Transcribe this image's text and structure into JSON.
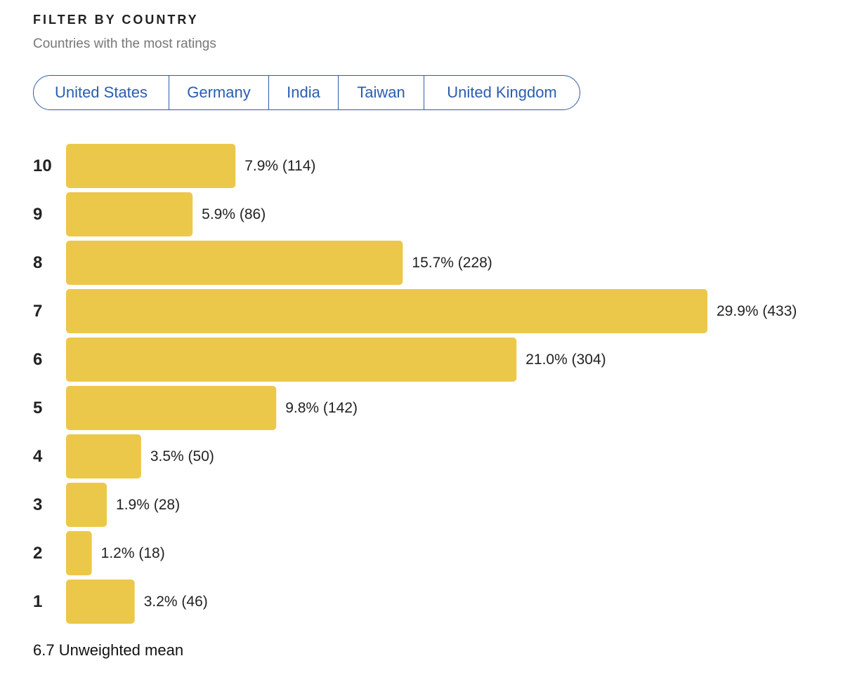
{
  "header": {
    "title": "FILTER BY COUNTRY",
    "subtitle": "Countries with the most ratings"
  },
  "filters": [
    "United States",
    "Germany",
    "India",
    "Taiwan",
    "United Kingdom"
  ],
  "chart_data": {
    "type": "bar",
    "orientation": "horizontal",
    "color": "#ecc84a",
    "categories": [
      "10",
      "9",
      "8",
      "7",
      "6",
      "5",
      "4",
      "3",
      "2",
      "1"
    ],
    "values": [
      7.9,
      5.9,
      15.7,
      29.9,
      21.0,
      9.8,
      3.5,
      1.9,
      1.2,
      3.2
    ],
    "value_labels": [
      "7.9% (114)",
      "5.9% (86)",
      "15.7% (228)",
      "29.9% (433)",
      "21.0% (304)",
      "9.8% (142)",
      "3.5% (50)",
      "1.9% (28)",
      "1.2% (18)",
      "3.2% (46)"
    ]
  },
  "footer": {
    "mean": 6.7,
    "label": "Unweighted mean"
  }
}
